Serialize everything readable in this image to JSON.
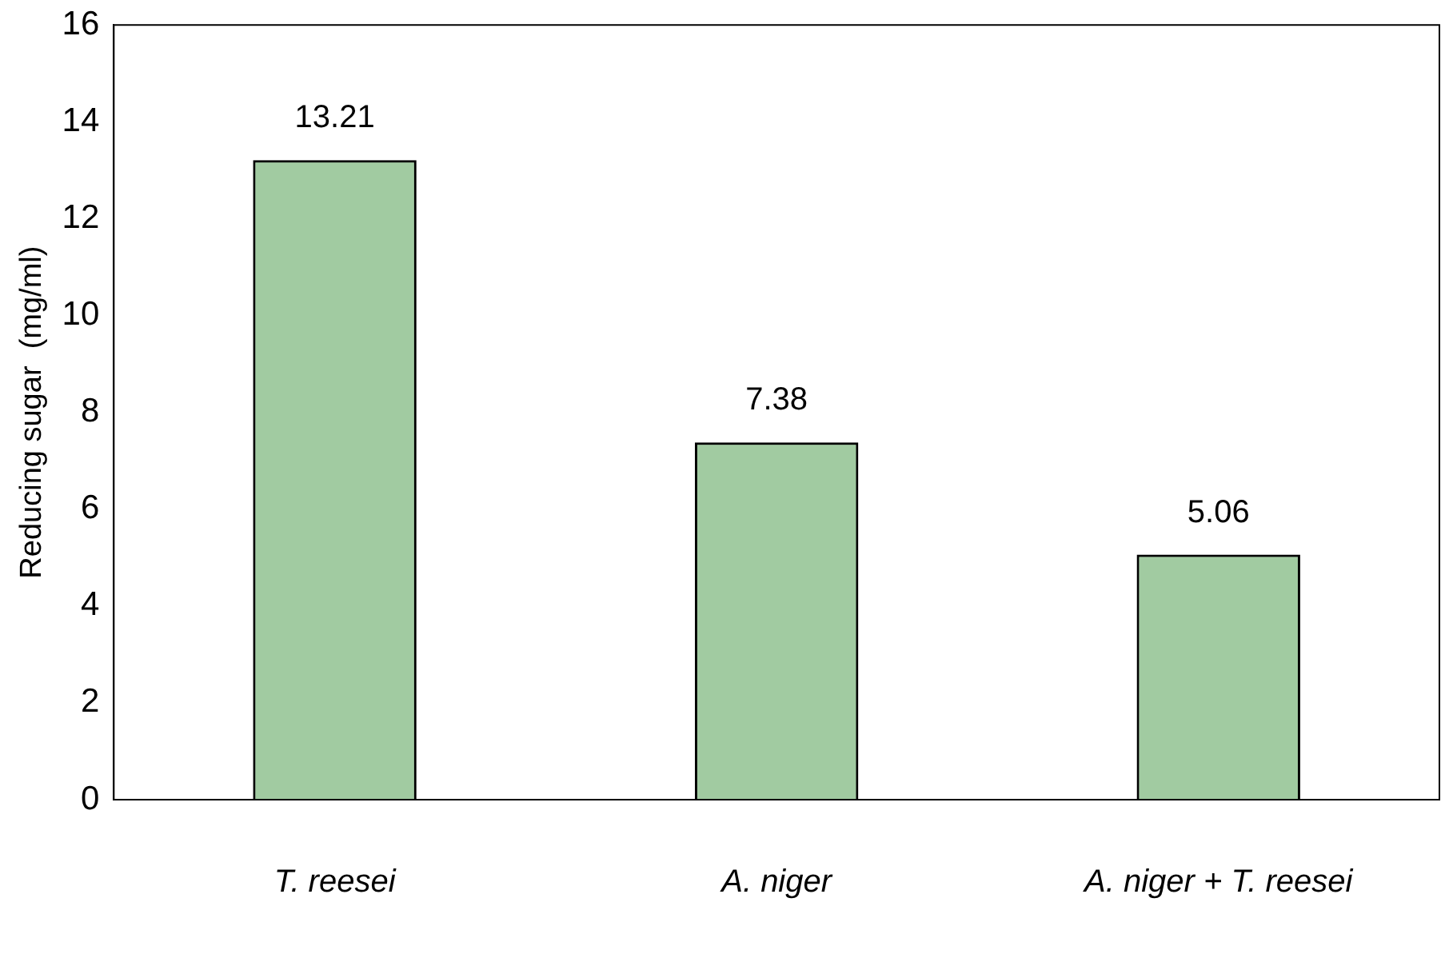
{
  "chart_data": {
    "type": "bar",
    "ylabel": "Reducing sugar  (mg/ml)",
    "categories": [
      "T. reesei",
      "A. niger",
      "A. niger + T. reesei"
    ],
    "values": [
      13.21,
      7.38,
      5.06
    ],
    "color": "#2e8b2e",
    "ylim": [
      0,
      16
    ],
    "yticks": [
      0,
      2,
      4,
      6,
      8,
      10,
      12,
      14,
      16
    ],
    "grid": false,
    "legend": false,
    "data_labels": true
  }
}
